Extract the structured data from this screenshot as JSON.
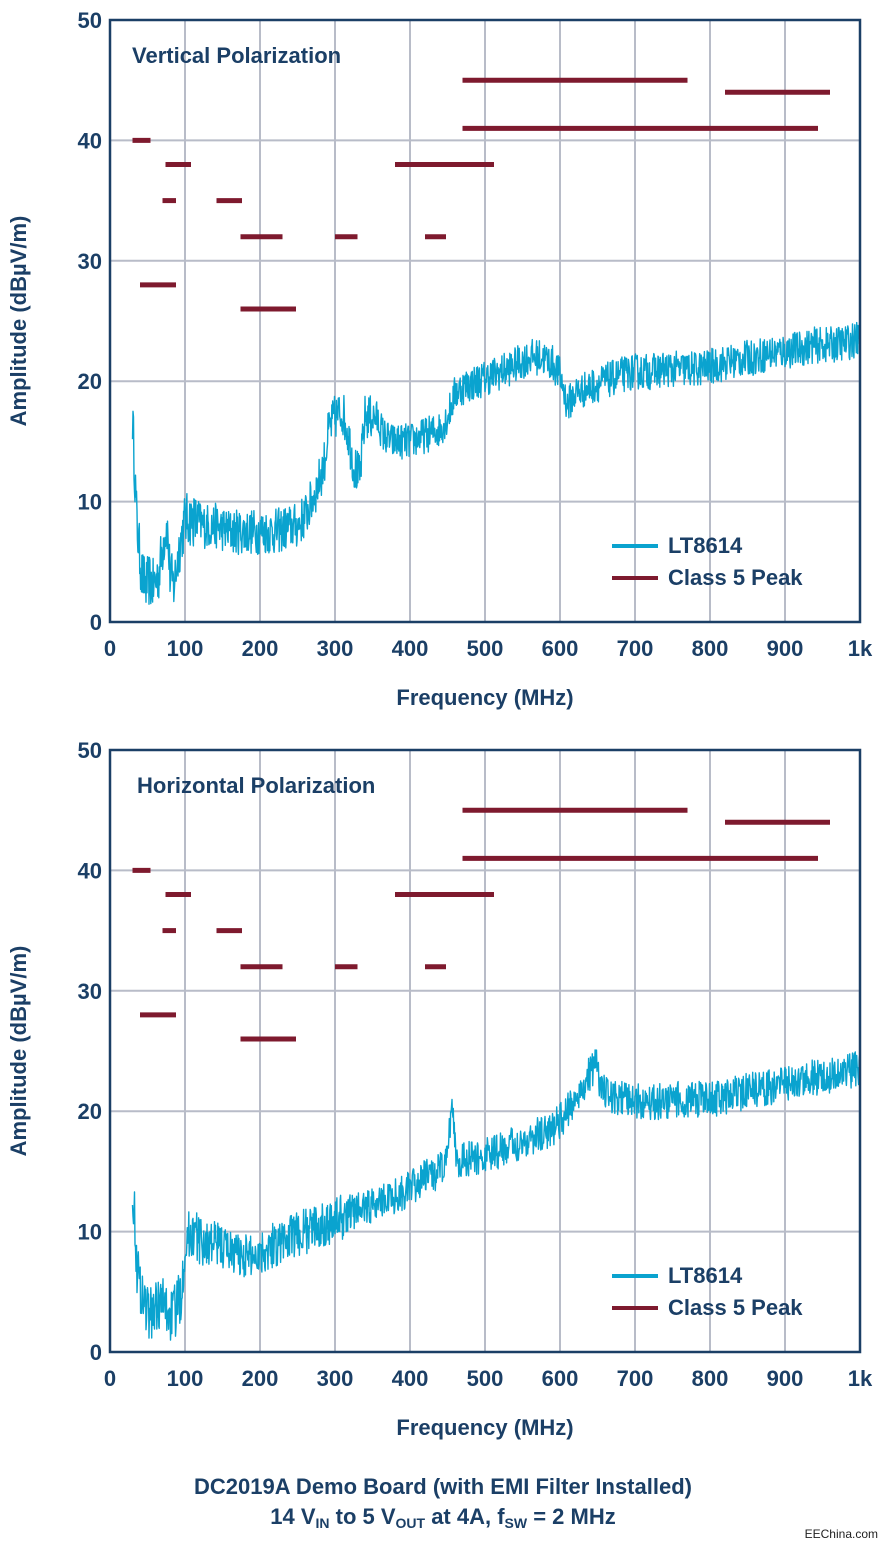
{
  "chart_data": [
    {
      "type": "line",
      "annotation": "Vertical Polarization",
      "xlabel": "Frequency (MHz)",
      "ylabel": "Amplitude (dBµV/m)",
      "xlim": [
        0,
        1000
      ],
      "ylim": [
        0,
        50
      ],
      "x_ticks": [
        0,
        100,
        200,
        300,
        400,
        500,
        600,
        700,
        800,
        900,
        1000
      ],
      "x_tick_labels": [
        "0",
        "100",
        "200",
        "300",
        "400",
        "500",
        "600",
        "700",
        "800",
        "900",
        "1k"
      ],
      "y_ticks": [
        0,
        10,
        20,
        30,
        40,
        50
      ],
      "y_tick_labels": [
        "0",
        "10",
        "20",
        "30",
        "40",
        "50"
      ],
      "grid": true,
      "legend_position": "bottom-right",
      "series": [
        {
          "name": "LT8614",
          "color": "#0aa3cf",
          "x": [
            30,
            32,
            36,
            42,
            48,
            52,
            58,
            65,
            72,
            76,
            80,
            85,
            92,
            100,
            110,
            125,
            140,
            160,
            175,
            190,
            205,
            220,
            235,
            250,
            262,
            275,
            285,
            292,
            300,
            310,
            318,
            325,
            333,
            340,
            347,
            355,
            365,
            375,
            385,
            400,
            420,
            440,
            450,
            460,
            470,
            490,
            510,
            530,
            545,
            560,
            575,
            590,
            600,
            610,
            620,
            640,
            660,
            680,
            700,
            720,
            740,
            760,
            780,
            800,
            820,
            840,
            860,
            880,
            900,
            920,
            940,
            960,
            980,
            1000
          ],
          "values": [
            17,
            14,
            8,
            4,
            3,
            3.5,
            3,
            4,
            7,
            8,
            4,
            3,
            6,
            8.5,
            8.5,
            8,
            8,
            7.5,
            7.5,
            7.5,
            7.5,
            7.5,
            7.8,
            8,
            9,
            11,
            13,
            16,
            17,
            17.5,
            15.5,
            13,
            12,
            17,
            17,
            17,
            15.5,
            15,
            15,
            15,
            15.5,
            16,
            17,
            19,
            19.5,
            20,
            20.5,
            21,
            21.5,
            22,
            22,
            21.5,
            20.5,
            18,
            19,
            19.5,
            20,
            20.5,
            20.8,
            20.8,
            21,
            21,
            21,
            21.2,
            21.5,
            21.8,
            22,
            22.3,
            22.5,
            22.7,
            23,
            23,
            23.2,
            23.5
          ]
        },
        {
          "name": "Class 5 Peak",
          "color": "#7e1a2e",
          "segments": [
            {
              "x": [
                30,
                54
              ],
              "y": 40
            },
            {
              "x": [
                74,
                108
              ],
              "y": 38
            },
            {
              "x": [
                70,
                88
              ],
              "y": 35
            },
            {
              "x": [
                142,
                176
              ],
              "y": 35
            },
            {
              "x": [
                174,
                230
              ],
              "y": 32
            },
            {
              "x": [
                300,
                330
              ],
              "y": 32
            },
            {
              "x": [
                420,
                448
              ],
              "y": 32
            },
            {
              "x": [
                40,
                88
              ],
              "y": 28
            },
            {
              "x": [
                174,
                248
              ],
              "y": 26
            },
            {
              "x": [
                380,
                512
              ],
              "y": 38
            },
            {
              "x": [
                470,
                770
              ],
              "y": 45
            },
            {
              "x": [
                820,
                960
              ],
              "y": 44
            },
            {
              "x": [
                470,
                944
              ],
              "y": 41
            }
          ]
        }
      ]
    },
    {
      "type": "line",
      "annotation": "Horizontal Polarization",
      "xlabel": "Frequency (MHz)",
      "ylabel": "Amplitude (dBµV/m)",
      "xlim": [
        0,
        1000
      ],
      "ylim": [
        0,
        50
      ],
      "x_ticks": [
        0,
        100,
        200,
        300,
        400,
        500,
        600,
        700,
        800,
        900,
        1000
      ],
      "x_tick_labels": [
        "0",
        "100",
        "200",
        "300",
        "400",
        "500",
        "600",
        "700",
        "800",
        "900",
        "1k"
      ],
      "y_ticks": [
        0,
        10,
        20,
        30,
        40,
        50
      ],
      "y_tick_labels": [
        "0",
        "10",
        "20",
        "30",
        "40",
        "50"
      ],
      "grid": true,
      "legend_position": "bottom-right",
      "series": [
        {
          "name": "LT8614",
          "color": "#0aa3cf",
          "x": [
            30,
            32,
            36,
            42,
            48,
            52,
            58,
            65,
            72,
            80,
            88,
            95,
            100,
            110,
            125,
            140,
            160,
            175,
            190,
            205,
            220,
            240,
            260,
            280,
            300,
            320,
            340,
            360,
            380,
            400,
            420,
            440,
            450,
            456,
            462,
            470,
            490,
            510,
            530,
            550,
            570,
            590,
            610,
            630,
            648,
            655,
            665,
            680,
            700,
            720,
            740,
            760,
            780,
            800,
            820,
            840,
            860,
            880,
            900,
            920,
            940,
            960,
            980,
            1000
          ],
          "values": [
            14,
            12,
            7,
            5,
            4,
            3,
            3.5,
            4,
            4,
            3,
            3.5,
            5,
            9,
            10,
            9,
            9,
            8.5,
            8,
            8,
            8.5,
            9,
            9.5,
            10,
            10.5,
            11,
            11.5,
            12,
            12.5,
            13,
            13.5,
            14.5,
            15,
            16,
            21,
            16,
            16,
            16,
            16.5,
            17,
            17.5,
            18,
            18.5,
            20,
            22,
            24,
            22,
            21,
            21,
            20.8,
            20.8,
            20.8,
            21,
            21,
            21,
            21.2,
            21.5,
            21.8,
            22,
            22.3,
            22.5,
            22.8,
            23,
            23.3,
            23.5
          ]
        },
        {
          "name": "Class 5 Peak",
          "color": "#7e1a2e",
          "segments": [
            {
              "x": [
                30,
                54
              ],
              "y": 40
            },
            {
              "x": [
                74,
                108
              ],
              "y": 38
            },
            {
              "x": [
                70,
                88
              ],
              "y": 35
            },
            {
              "x": [
                142,
                176
              ],
              "y": 35
            },
            {
              "x": [
                174,
                230
              ],
              "y": 32
            },
            {
              "x": [
                300,
                330
              ],
              "y": 32
            },
            {
              "x": [
                420,
                448
              ],
              "y": 32
            },
            {
              "x": [
                40,
                88
              ],
              "y": 28
            },
            {
              "x": [
                174,
                248
              ],
              "y": 26
            },
            {
              "x": [
                380,
                512
              ],
              "y": 38
            },
            {
              "x": [
                470,
                770
              ],
              "y": 45
            },
            {
              "x": [
                820,
                960
              ],
              "y": 44
            },
            {
              "x": [
                470,
                944
              ],
              "y": 41
            }
          ]
        }
      ]
    }
  ],
  "caption": {
    "line1": "DC2019A Demo Board (with EMI Filter Installed)",
    "line2_parts": [
      "14 V",
      "IN",
      " to 5 V",
      "OUT",
      " at 4A, f",
      "SW",
      " = 2 MHz"
    ]
  },
  "watermark": "EEChina.com"
}
